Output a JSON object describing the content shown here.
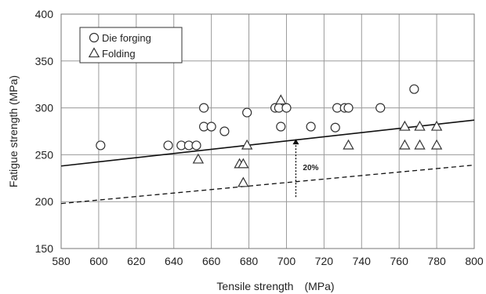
{
  "chart_data": {
    "type": "scatter",
    "xlabel": "Tensile strength　(MPa)",
    "ylabel": "Fatigue strength (MPa)",
    "xlim": [
      580,
      800
    ],
    "ylim": [
      150,
      400
    ],
    "x_ticks": [
      580,
      600,
      620,
      640,
      660,
      680,
      700,
      720,
      740,
      760,
      780,
      800
    ],
    "y_ticks": [
      150,
      200,
      250,
      300,
      350,
      400
    ],
    "grid": true,
    "legend_position": "top-left",
    "series": [
      {
        "name": "Die forging",
        "marker": "circle",
        "points": [
          [
            601,
            260
          ],
          [
            637,
            260
          ],
          [
            644,
            260
          ],
          [
            648,
            260
          ],
          [
            652,
            260
          ],
          [
            656,
            300
          ],
          [
            656,
            280
          ],
          [
            660,
            280
          ],
          [
            667,
            275
          ],
          [
            679,
            295
          ],
          [
            694,
            300
          ],
          [
            696,
            300
          ],
          [
            697,
            280
          ],
          [
            700,
            300
          ],
          [
            713,
            280
          ],
          [
            726,
            279
          ],
          [
            727,
            300
          ],
          [
            731,
            300
          ],
          [
            733,
            300
          ],
          [
            750,
            300
          ],
          [
            768,
            320
          ]
        ]
      },
      {
        "name": "Folding",
        "marker": "triangle",
        "points": [
          [
            653,
            245
          ],
          [
            675,
            240
          ],
          [
            677,
            240
          ],
          [
            677,
            220
          ],
          [
            679,
            260
          ],
          [
            697,
            308
          ],
          [
            733,
            260
          ],
          [
            763,
            280
          ],
          [
            763,
            260
          ],
          [
            771,
            280
          ],
          [
            771,
            260
          ],
          [
            780,
            280
          ],
          [
            780,
            260
          ]
        ]
      }
    ],
    "reference_lines": [
      {
        "style": "solid",
        "x": [
          580,
          800
        ],
        "y": [
          238,
          287
        ]
      },
      {
        "style": "dashed",
        "x": [
          580,
          800
        ],
        "y": [
          198,
          239
        ]
      }
    ],
    "annotations": [
      {
        "text": "20%",
        "arrow_x": 705,
        "arrow_from": 205,
        "arrow_to": 267
      }
    ]
  }
}
